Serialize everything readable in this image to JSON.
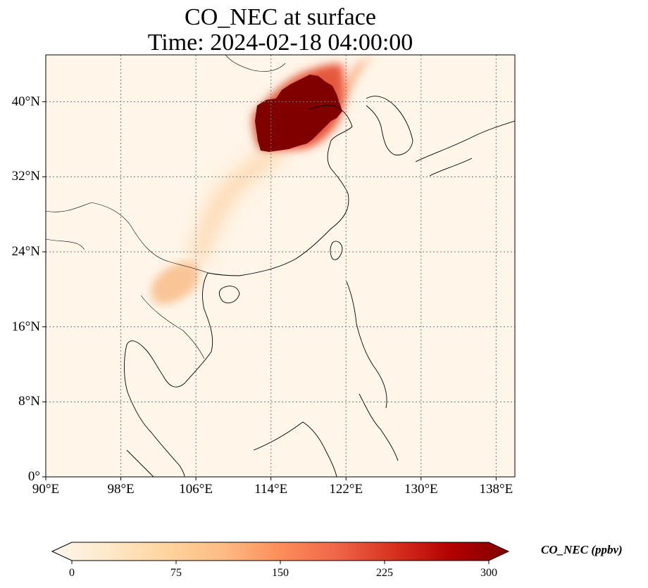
{
  "title": {
    "line1": "CO_NEC at surface",
    "line2": "Time: 2024-02-18 04:00:00"
  },
  "map": {
    "variable": "CO_NEC",
    "extent": {
      "lon": [
        90,
        140
      ],
      "lat": [
        0,
        45
      ]
    },
    "lon_ticks": [
      {
        "value": 90,
        "label": "90°E"
      },
      {
        "value": 98,
        "label": "98°E"
      },
      {
        "value": 106,
        "label": "106°E"
      },
      {
        "value": 114,
        "label": "114°E"
      },
      {
        "value": 122,
        "label": "122°E"
      },
      {
        "value": 130,
        "label": "130°E"
      },
      {
        "value": 138,
        "label": "138°E"
      }
    ],
    "lat_ticks": [
      {
        "value": 0,
        "label": "0°"
      },
      {
        "value": 8,
        "label": "8°N"
      },
      {
        "value": 16,
        "label": "16°N"
      },
      {
        "value": 24,
        "label": "24°N"
      },
      {
        "value": 32,
        "label": "32°N"
      },
      {
        "value": 40,
        "label": "40°N"
      }
    ],
    "gridlines": true,
    "background_color": "#fff5e8",
    "concentration_features": [
      {
        "area": "North China Plain plume",
        "value": 300
      },
      {
        "area": "Outer plume edge",
        "value": 220
      },
      {
        "area": "Central China band",
        "value": 100
      },
      {
        "area": "Northern Laos / Yunnan",
        "value": 90
      }
    ]
  },
  "colorbar": {
    "label": "CO_NEC (ppbv)",
    "min": 0,
    "max": 300,
    "extend": "both",
    "ticks": [
      {
        "value": 0,
        "label": "0"
      },
      {
        "value": 75,
        "label": "75"
      },
      {
        "value": 150,
        "label": "150"
      },
      {
        "value": 225,
        "label": "225"
      },
      {
        "value": 300,
        "label": "300"
      }
    ],
    "colormap": "OrRd",
    "colors": [
      "#fff7ec",
      "#fee8c8",
      "#fdd49e",
      "#fdbb84",
      "#fc8d59",
      "#ef6548",
      "#d7301f",
      "#b30000",
      "#7f0000"
    ]
  }
}
